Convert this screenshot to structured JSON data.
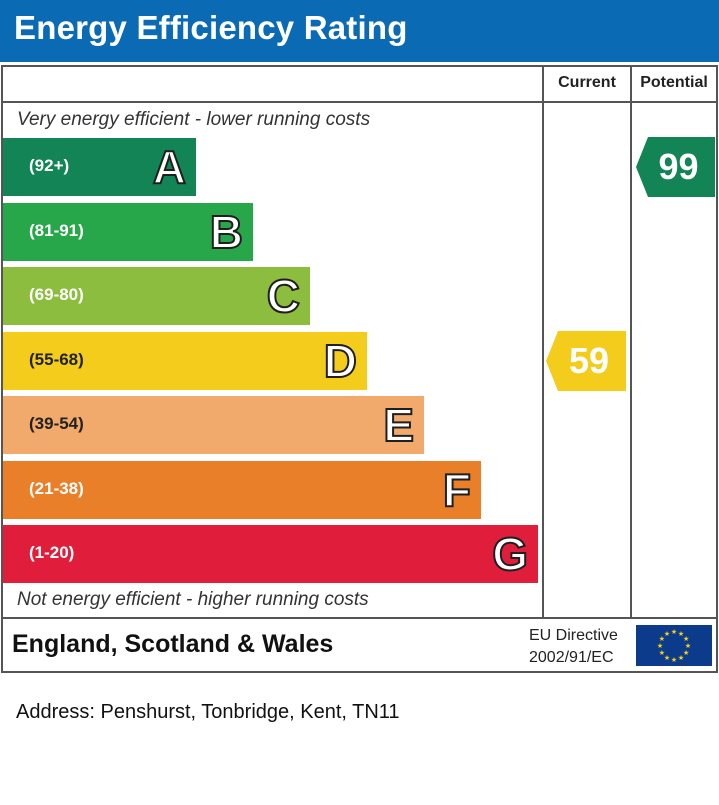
{
  "header": {
    "title": "Energy Efficiency Rating"
  },
  "columns": {
    "current": "Current",
    "potential": "Potential"
  },
  "notes": {
    "top": "Very energy efficient - lower running costs",
    "bottom": "Not energy efficient - higher running costs"
  },
  "chart_data": {
    "type": "bar",
    "title": "Energy Efficiency Rating",
    "categories": [
      "A",
      "B",
      "C",
      "D",
      "E",
      "F",
      "G"
    ],
    "ranges": [
      "(92+)",
      "(81-91)",
      "(69-80)",
      "(55-68)",
      "(39-54)",
      "(21-38)",
      "(1-20)"
    ],
    "colors": [
      "#138455",
      "#27a74a",
      "#8cbd3f",
      "#f4cd1c",
      "#f2a96c",
      "#ea7f2a",
      "#e01e3c"
    ],
    "current": {
      "value": 59,
      "band": "D",
      "color": "#f4cd1c"
    },
    "potential": {
      "value": 99,
      "band": "A",
      "color": "#138455"
    }
  },
  "footer": {
    "region": "England, Scotland & Wales",
    "directive_line1": "EU Directive",
    "directive_line2": "2002/91/EC"
  },
  "address": "Address: Penshurst, Tonbridge, Kent, TN11"
}
